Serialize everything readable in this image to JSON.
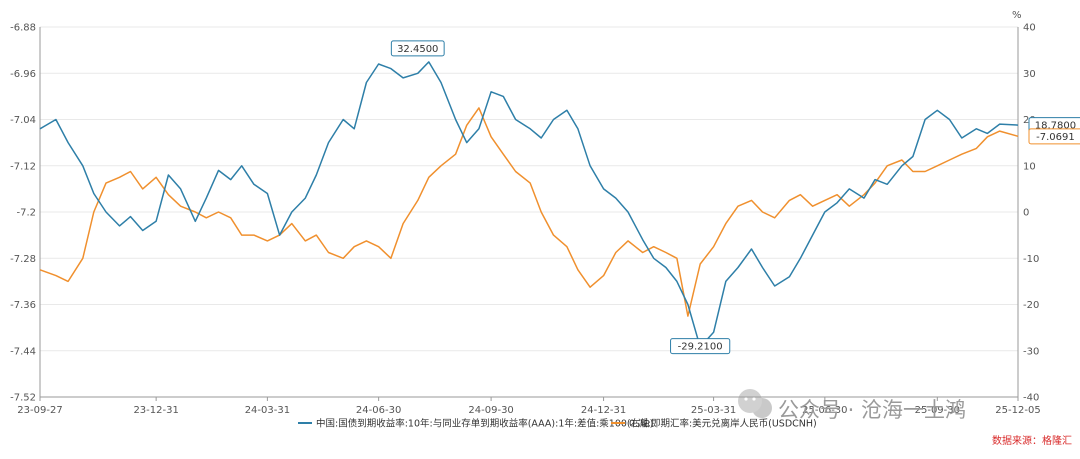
{
  "chart_data": {
    "type": "line",
    "title": "",
    "x_tick_labels": [
      "23-09-27",
      "23-12-31",
      "24-03-31",
      "24-06-30",
      "24-09-30",
      "24-12-31",
      "25-03-31",
      "25-06-30",
      "25-09-30",
      "25-12-05"
    ],
    "y_left": {
      "min": -7.52,
      "max": -6.88,
      "ticks": [
        "-6.88",
        "-6.96",
        "-7.04",
        "-7.12",
        "-7.2",
        "-7.28",
        "-7.36",
        "-7.44",
        "-7.52"
      ]
    },
    "y_right": {
      "unit": "%",
      "min": -40,
      "max": 40,
      "ticks": [
        "40",
        "30",
        "20",
        "10",
        "0",
        "-10",
        "-20",
        "-30",
        "-40"
      ]
    },
    "grid": true,
    "legend_position": "bottom",
    "series": [
      {
        "name": "中国:国债到期收益率:10年:与同业存单到期收益率(AAA):1年:差值:乘100(右轴)",
        "axis": "right",
        "color": "#2e7fa8",
        "x": [
          "23-09-27",
          "23-10-10",
          "23-10-20",
          "23-11-01",
          "23-11-10",
          "23-11-20",
          "23-12-01",
          "23-12-10",
          "23-12-20",
          "23-12-31",
          "24-01-10",
          "24-01-20",
          "24-02-01",
          "24-02-10",
          "24-02-20",
          "24-03-01",
          "24-03-10",
          "24-03-20",
          "24-03-31",
          "24-04-10",
          "24-04-20",
          "24-05-01",
          "24-05-10",
          "24-05-20",
          "24-06-01",
          "24-06-10",
          "24-06-20",
          "24-06-30",
          "24-07-10",
          "24-07-20",
          "24-08-01",
          "24-08-10",
          "24-08-20",
          "24-09-01",
          "24-09-10",
          "24-09-20",
          "24-09-30",
          "24-10-10",
          "24-10-20",
          "24-11-01",
          "24-11-10",
          "24-11-20",
          "24-12-01",
          "24-12-10",
          "24-12-20",
          "24-12-31",
          "25-01-10",
          "25-01-20",
          "25-02-01",
          "25-02-10",
          "25-02-20",
          "25-03-01",
          "25-03-10",
          "25-03-20",
          "25-03-31",
          "25-04-10",
          "25-04-20",
          "25-05-01",
          "25-05-10",
          "25-05-20",
          "25-06-01",
          "25-06-10",
          "25-06-20",
          "25-06-30",
          "25-07-10",
          "25-07-20",
          "25-08-01",
          "25-08-10",
          "25-08-20",
          "25-09-01",
          "25-09-10",
          "25-09-20",
          "25-09-30",
          "25-10-10",
          "25-10-20",
          "25-11-01",
          "25-11-10",
          "25-11-20",
          "25-12-05"
        ],
        "y": [
          18,
          20,
          15,
          10,
          4,
          0,
          -3,
          -1,
          -4,
          -2,
          8,
          5,
          -2,
          3,
          9,
          7,
          10,
          6,
          4,
          -5,
          0,
          3,
          8,
          15,
          20,
          18,
          28,
          32,
          31,
          29,
          30,
          32.45,
          28,
          20,
          15,
          18,
          26,
          25,
          20,
          18,
          16,
          20,
          22,
          18,
          10,
          5,
          3,
          0,
          -6,
          -10,
          -12,
          -15,
          -20,
          -29.21,
          -26,
          -15,
          -12,
          -8,
          -12,
          -16,
          -14,
          -10,
          -5,
          0,
          2,
          5,
          3,
          7,
          6,
          10,
          12,
          20,
          22,
          20,
          16,
          18,
          17,
          19,
          18.78
        ]
      },
      {
        "name": "0:减:即期汇率:美元兑离岸人民币(USDCNH)",
        "axis": "left",
        "color": "#f0902e",
        "x": [
          "23-09-27",
          "23-10-10",
          "23-10-20",
          "23-11-01",
          "23-11-10",
          "23-11-20",
          "23-12-01",
          "23-12-10",
          "23-12-20",
          "23-12-31",
          "24-01-10",
          "24-01-20",
          "24-02-01",
          "24-02-10",
          "24-02-20",
          "24-03-01",
          "24-03-10",
          "24-03-20",
          "24-03-31",
          "24-04-10",
          "24-04-20",
          "24-05-01",
          "24-05-10",
          "24-05-20",
          "24-06-01",
          "24-06-10",
          "24-06-20",
          "24-06-30",
          "24-07-10",
          "24-07-20",
          "24-08-01",
          "24-08-10",
          "24-08-20",
          "24-09-01",
          "24-09-10",
          "24-09-20",
          "24-09-30",
          "24-10-10",
          "24-10-20",
          "24-11-01",
          "24-11-10",
          "24-11-20",
          "24-12-01",
          "24-12-10",
          "24-12-20",
          "24-12-31",
          "25-01-10",
          "25-01-20",
          "25-02-01",
          "25-02-10",
          "25-02-20",
          "25-03-01",
          "25-03-10",
          "25-03-20",
          "25-03-31",
          "25-04-10",
          "25-04-20",
          "25-05-01",
          "25-05-10",
          "25-05-20",
          "25-06-01",
          "25-06-10",
          "25-06-20",
          "25-06-30",
          "25-07-10",
          "25-07-20",
          "25-08-01",
          "25-08-10",
          "25-08-20",
          "25-09-01",
          "25-09-10",
          "25-09-20",
          "25-09-30",
          "25-10-10",
          "25-10-20",
          "25-11-01",
          "25-11-10",
          "25-11-20",
          "25-12-05"
        ],
        "y": [
          -7.3,
          -7.31,
          -7.32,
          -7.28,
          -7.2,
          -7.15,
          -7.14,
          -7.13,
          -7.16,
          -7.14,
          -7.17,
          -7.19,
          -7.2,
          -7.21,
          -7.2,
          -7.21,
          -7.24,
          -7.24,
          -7.25,
          -7.24,
          -7.22,
          -7.25,
          -7.24,
          -7.27,
          -7.28,
          -7.26,
          -7.25,
          -7.26,
          -7.28,
          -7.22,
          -7.18,
          -7.14,
          -7.12,
          -7.1,
          -7.05,
          -7.02,
          -7.07,
          -7.1,
          -7.13,
          -7.15,
          -7.2,
          -7.24,
          -7.26,
          -7.3,
          -7.33,
          -7.31,
          -7.27,
          -7.25,
          -7.27,
          -7.26,
          -7.27,
          -7.28,
          -7.38,
          -7.29,
          -7.26,
          -7.22,
          -7.19,
          -7.18,
          -7.2,
          -7.21,
          -7.18,
          -7.17,
          -7.19,
          -7.18,
          -7.17,
          -7.19,
          -7.17,
          -7.15,
          -7.12,
          -7.11,
          -7.13,
          -7.13,
          -7.12,
          -7.11,
          -7.1,
          -7.09,
          -7.07,
          -7.06,
          -7.0691
        ]
      }
    ],
    "annotations": [
      {
        "label": "32.4500",
        "series": 0,
        "x": "24-08-01",
        "y": 32.45
      },
      {
        "label": "-29.2100",
        "series": 0,
        "x": "25-03-20",
        "y": -29.21
      },
      {
        "label": "18.7800",
        "series": 0,
        "x": "25-12-05",
        "y": 18.78
      },
      {
        "label": "-7.0691",
        "series": 1,
        "x": "25-12-05",
        "y": -7.0691
      }
    ]
  },
  "watermark": {
    "main": "公众号 · 沧海一土鸿",
    "source": "数据来源：格隆汇"
  }
}
